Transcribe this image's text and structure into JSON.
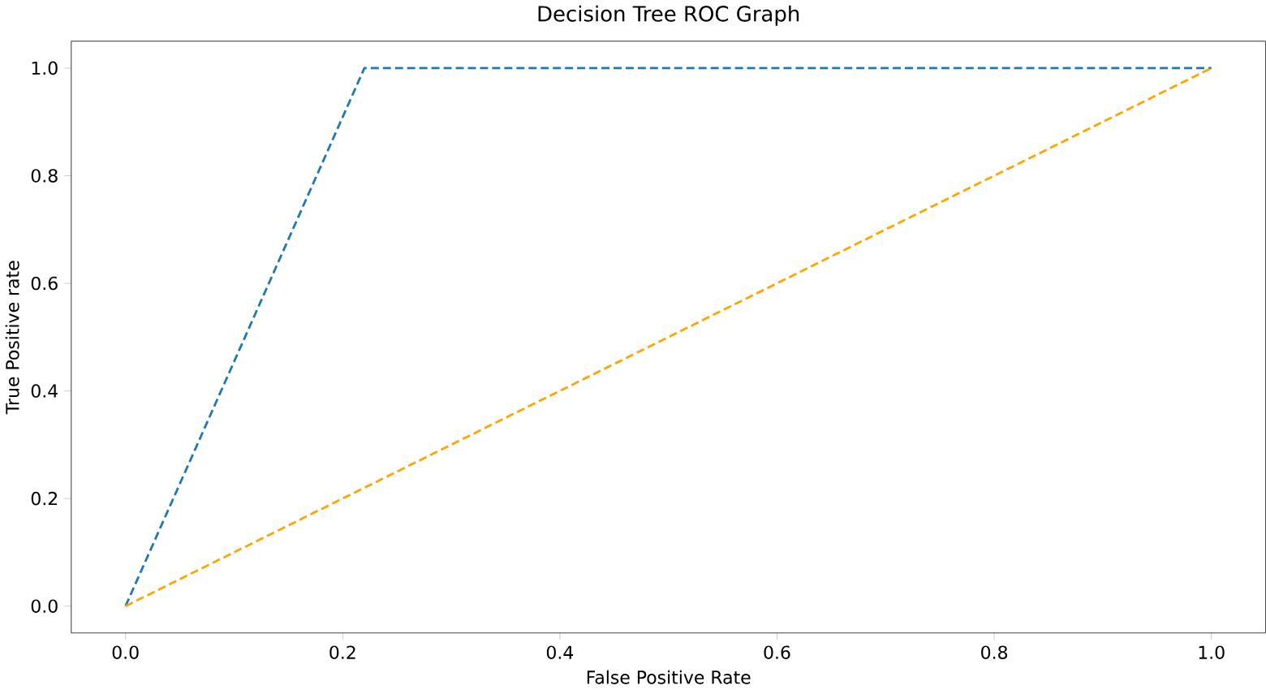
{
  "chart_data": {
    "type": "line",
    "title": "Decision Tree ROC Graph",
    "xlabel": "False Positive Rate",
    "ylabel": "True Positive rate",
    "xlim": [
      -0.05,
      1.05
    ],
    "ylim": [
      -0.05,
      1.05
    ],
    "xticks": [
      {
        "value": 0,
        "label": "0.0"
      },
      {
        "value": 0.2,
        "label": "0.2"
      },
      {
        "value": 0.4,
        "label": "0.4"
      },
      {
        "value": 0.6,
        "label": "0.6"
      },
      {
        "value": 0.8,
        "label": "0.8"
      },
      {
        "value": 1,
        "label": "1.0"
      }
    ],
    "yticks": [
      {
        "value": 0,
        "label": "0.0"
      },
      {
        "value": 0.2,
        "label": "0.2"
      },
      {
        "value": 0.4,
        "label": "0.4"
      },
      {
        "value": 0.6,
        "label": "0.6"
      },
      {
        "value": 0.8,
        "label": "0.8"
      },
      {
        "value": 1,
        "label": "1.0"
      }
    ],
    "line_style": "dashed",
    "series": [
      {
        "color": "#1f77b4",
        "x": [
          0,
          0.22,
          1
        ],
        "values": [
          0,
          1,
          1
        ]
      },
      {
        "color": "#ffa500",
        "x": [
          0,
          1
        ],
        "values": [
          0,
          1
        ]
      }
    ]
  }
}
